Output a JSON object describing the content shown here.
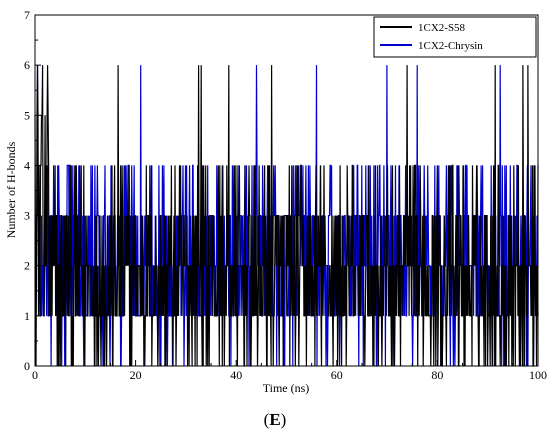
{
  "panel_label": {
    "open": "(",
    "letter": "E",
    "close": ")"
  },
  "chart_data": {
    "type": "line",
    "title": "",
    "xlabel": "Time (ns)",
    "ylabel": "Number of H-bonds",
    "xlim": [
      0,
      100
    ],
    "ylim": [
      0,
      7
    ],
    "xticks": [
      0,
      20,
      40,
      60,
      80,
      100
    ],
    "yticks": [
      0,
      1,
      2,
      3,
      4,
      5,
      6,
      7
    ],
    "grid": false,
    "legend_position": "top-right",
    "series": [
      {
        "name": "1CX2-S58",
        "color": "#000000",
        "typical_range": [
          0,
          4
        ],
        "mean": 1.7,
        "max": 6,
        "peaks_at_6": [
          0.5,
          1.5,
          2.5,
          16.5,
          32.5,
          33,
          38.5,
          47,
          74,
          91.5,
          97,
          98
        ]
      },
      {
        "name": "1CX2-Chrysin",
        "color": "#0000cc",
        "typical_range": [
          1,
          3
        ],
        "mean": 1.8,
        "max": 6,
        "peaks_at_6": [
          0.5,
          21,
          44,
          56,
          70,
          76,
          92.5
        ]
      }
    ]
  },
  "colors": {
    "axis": "#000000",
    "s58": "#000000",
    "chrysin": "#0000cc"
  }
}
